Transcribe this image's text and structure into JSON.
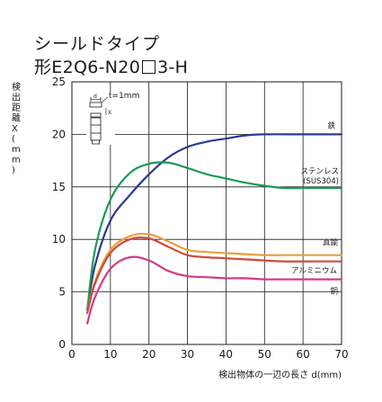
{
  "header": {
    "title_line1": "シールドタイプ",
    "title_line2_prefix": "形E2Q6-N20",
    "title_line2_suffix": "3-H"
  },
  "inset": {
    "label": "t=1mm",
    "x_mark": "X"
  },
  "chart_data": {
    "type": "line",
    "title": "",
    "xlabel": "検出物体の一辺の長さ d(mm)",
    "ylabel": "検出距離X(mm)",
    "xlim": [
      0,
      70
    ],
    "ylim": [
      0,
      25
    ],
    "xticks": [
      0,
      10,
      20,
      30,
      40,
      50,
      60,
      70
    ],
    "yticks": [
      0,
      5,
      10,
      15,
      20,
      25
    ],
    "grid": true,
    "series": [
      {
        "name": "鉄",
        "color": "#2b3a8c",
        "x": [
          4,
          6,
          10,
          15,
          20,
          25,
          30,
          35,
          40,
          45,
          50,
          60,
          70
        ],
        "y": [
          3.3,
          7.5,
          11.8,
          14.2,
          16.2,
          17.8,
          18.8,
          19.3,
          19.6,
          19.9,
          20.0,
          20.0,
          20.0
        ]
      },
      {
        "name": "ステンレス",
        "name2": "(SUS304)",
        "color": "#1a9a55",
        "x": [
          4,
          6,
          10,
          15,
          20,
          25,
          30,
          35,
          40,
          45,
          50,
          55,
          60,
          70
        ],
        "y": [
          3.3,
          9.0,
          13.8,
          16.3,
          17.2,
          17.3,
          16.8,
          16.2,
          15.8,
          15.4,
          15.1,
          14.9,
          14.9,
          14.9
        ]
      },
      {
        "name": "真鍮",
        "color": "#e8a040",
        "x": [
          4,
          6,
          10,
          15,
          20,
          25,
          30,
          35,
          40,
          45,
          50,
          55,
          60,
          70
        ],
        "y": [
          3.0,
          6.0,
          9.0,
          10.3,
          10.5,
          9.8,
          9.0,
          8.8,
          8.7,
          8.6,
          8.5,
          8.5,
          8.5,
          8.5
        ]
      },
      {
        "name": "アルミニウム",
        "color": "#d04a3a",
        "x": [
          4,
          6,
          10,
          15,
          20,
          25,
          30,
          35,
          40,
          45,
          50,
          55,
          60,
          70
        ],
        "y": [
          3.0,
          5.8,
          8.7,
          10.0,
          10.1,
          9.3,
          8.5,
          8.3,
          8.2,
          8.1,
          8.0,
          7.9,
          7.9,
          7.9
        ]
      },
      {
        "name": "銅",
        "color": "#d43a8a",
        "x": [
          4,
          6,
          10,
          15,
          20,
          25,
          30,
          35,
          40,
          45,
          50,
          55,
          60,
          70
        ],
        "y": [
          2.0,
          4.5,
          7.2,
          8.3,
          8.0,
          7.0,
          6.5,
          6.4,
          6.3,
          6.3,
          6.2,
          6.2,
          6.2,
          6.2
        ]
      }
    ]
  }
}
